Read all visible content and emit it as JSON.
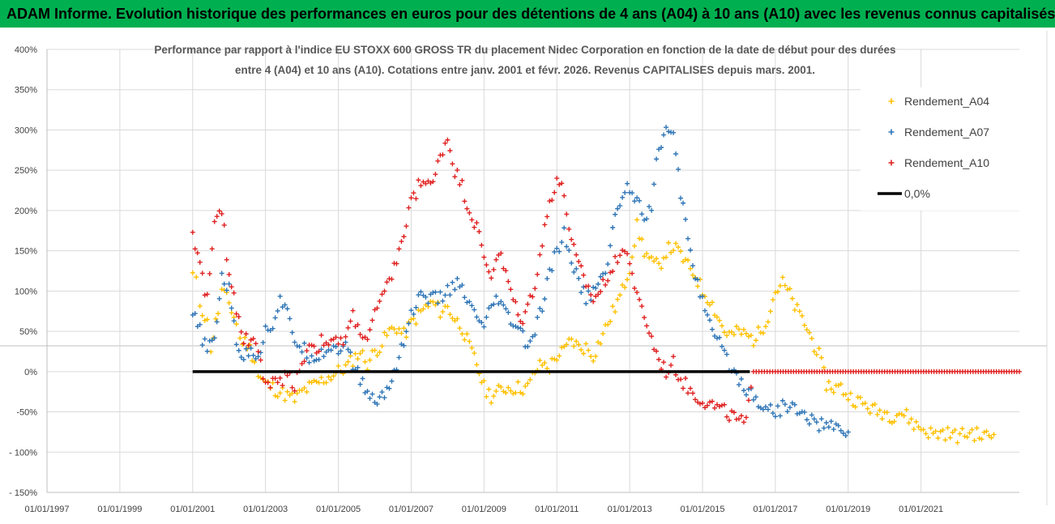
{
  "banner": {
    "text": "ADAM Informe. Evolution historique des performances en euros pour des détentions de 4 ans (A04) à 10 ans (A10) avec les revenus connus capitalisés",
    "background": "#00b050"
  },
  "chart_data": {
    "type": "scatter",
    "title_line1": "Performance par rapport à l'indice EU STOXX 600 GROSS TR  du placement Nidec Corporation en fonction de la date de début pour des durées",
    "title_line2": "entre 4 (A04) et 10 ans (A10). Cotations entre janv. 2001 et févr. 2026. Revenus CAPITALISES depuis mars. 2001.",
    "xlabel": "",
    "ylabel": "",
    "xlim": [
      1997,
      2023.7
    ],
    "ylim": [
      -150,
      400
    ],
    "y_ticks": [
      400,
      350,
      300,
      250,
      200,
      150,
      100,
      50,
      0,
      -50,
      -100,
      -150
    ],
    "y_tick_labels": [
      "400%",
      "350%",
      "300%",
      "250%",
      "200%",
      "150%",
      "100%",
      "50%",
      "0%",
      "-50%",
      "- 100%",
      "- 150%"
    ],
    "x_ticks": [
      1997,
      1999,
      2001,
      2003,
      2005,
      2007,
      2009,
      2011,
      2013,
      2015,
      2017,
      2019,
      2021
    ],
    "x_tick_labels": [
      "01/01/1997",
      "01/01/1999",
      "01/01/2001",
      "01/01/2003",
      "01/01/2005",
      "01/01/2007",
      "01/01/2009",
      "01/01/2011",
      "01/01/2013",
      "01/01/2015",
      "01/01/2017",
      "01/01/2019",
      "01/01/2021"
    ],
    "legend_position": "top-right",
    "series": [
      {
        "name": "Rendement_A04",
        "color": "#ffc000",
        "marker": "+",
        "points": [
          [
            2001.0,
            120
          ],
          [
            2001.1,
            110
          ],
          [
            2001.2,
            85
          ],
          [
            2001.4,
            60
          ],
          [
            2001.5,
            30
          ],
          [
            2001.7,
            75
          ],
          [
            2001.8,
            100
          ],
          [
            2002.0,
            85
          ],
          [
            2002.2,
            60
          ],
          [
            2002.3,
            40
          ],
          [
            2002.5,
            35
          ],
          [
            2002.7,
            15
          ],
          [
            2002.8,
            -5
          ],
          [
            2003.0,
            -15
          ],
          [
            2003.2,
            -20
          ],
          [
            2003.4,
            -25
          ],
          [
            2003.6,
            -30
          ],
          [
            2003.8,
            -35
          ],
          [
            2004.0,
            -25
          ],
          [
            2004.2,
            -20
          ],
          [
            2004.4,
            -15
          ],
          [
            2004.6,
            -10
          ],
          [
            2004.8,
            -5
          ],
          [
            2005.0,
            0
          ],
          [
            2005.2,
            5
          ],
          [
            2005.4,
            15
          ],
          [
            2005.6,
            25
          ],
          [
            2005.8,
            10
          ],
          [
            2006.0,
            25
          ],
          [
            2006.2,
            35
          ],
          [
            2006.4,
            50
          ],
          [
            2006.6,
            55
          ],
          [
            2006.8,
            45
          ],
          [
            2007.0,
            60
          ],
          [
            2007.2,
            70
          ],
          [
            2007.4,
            80
          ],
          [
            2007.6,
            85
          ],
          [
            2007.8,
            75
          ],
          [
            2008.0,
            80
          ],
          [
            2008.2,
            65
          ],
          [
            2008.4,
            55
          ],
          [
            2008.6,
            30
          ],
          [
            2008.8,
            10
          ],
          [
            2009.0,
            -20
          ],
          [
            2009.2,
            -30
          ],
          [
            2009.4,
            -25
          ],
          [
            2009.6,
            -20
          ],
          [
            2009.8,
            -20
          ],
          [
            2010.0,
            -20
          ],
          [
            2010.2,
            -20
          ],
          [
            2010.4,
            0
          ],
          [
            2010.6,
            10
          ],
          [
            2010.8,
            5
          ],
          [
            2011.0,
            20
          ],
          [
            2011.2,
            25
          ],
          [
            2011.4,
            40
          ],
          [
            2011.6,
            30
          ],
          [
            2011.8,
            30
          ],
          [
            2012.0,
            20
          ],
          [
            2012.2,
            40
          ],
          [
            2012.4,
            60
          ],
          [
            2012.6,
            80
          ],
          [
            2012.8,
            100
          ],
          [
            2013.0,
            130
          ],
          [
            2013.2,
            180
          ],
          [
            2013.4,
            150
          ],
          [
            2013.6,
            135
          ],
          [
            2013.8,
            130
          ],
          [
            2014.0,
            150
          ],
          [
            2014.2,
            155
          ],
          [
            2014.4,
            145
          ],
          [
            2014.6,
            130
          ],
          [
            2014.8,
            120
          ],
          [
            2015.0,
            100
          ],
          [
            2015.2,
            90
          ],
          [
            2015.4,
            70
          ],
          [
            2015.6,
            50
          ],
          [
            2015.8,
            45
          ],
          [
            2016.0,
            50
          ],
          [
            2016.2,
            45
          ],
          [
            2016.4,
            40
          ],
          [
            2016.6,
            50
          ],
          [
            2016.8,
            70
          ],
          [
            2017.0,
            100
          ],
          [
            2017.2,
            110
          ],
          [
            2017.4,
            95
          ],
          [
            2017.6,
            75
          ],
          [
            2017.8,
            60
          ],
          [
            2018.0,
            40
          ],
          [
            2018.2,
            20
          ],
          [
            2018.4,
            -15
          ],
          [
            2018.6,
            -20
          ],
          [
            2018.8,
            -20
          ],
          [
            2019.0,
            -30
          ],
          [
            2019.2,
            -35
          ],
          [
            2019.4,
            -40
          ],
          [
            2019.6,
            -45
          ],
          [
            2019.8,
            -50
          ],
          [
            2020.0,
            -50
          ],
          [
            2020.2,
            -55
          ],
          [
            2020.4,
            -50
          ],
          [
            2020.6,
            -55
          ],
          [
            2020.8,
            -65
          ],
          [
            2021.0,
            -70
          ],
          [
            2021.2,
            -75
          ],
          [
            2021.4,
            -78
          ],
          [
            2021.6,
            -75
          ],
          [
            2021.8,
            -78
          ],
          [
            2022.0,
            -80
          ],
          [
            2022.2,
            -78
          ],
          [
            2022.4,
            -75
          ],
          [
            2022.6,
            -80
          ],
          [
            2022.8,
            -80
          ],
          [
            2023.0,
            -78
          ]
        ]
      },
      {
        "name": "Rendement_A07",
        "color": "#2e75b6",
        "marker": "+",
        "points": [
          [
            2001.0,
            70
          ],
          [
            2001.2,
            50
          ],
          [
            2001.4,
            25
          ],
          [
            2001.6,
            40
          ],
          [
            2001.8,
            120
          ],
          [
            2002.0,
            100
          ],
          [
            2002.2,
            40
          ],
          [
            2002.4,
            15
          ],
          [
            2002.6,
            30
          ],
          [
            2002.8,
            20
          ],
          [
            2003.0,
            50
          ],
          [
            2003.2,
            60
          ],
          [
            2003.4,
            90
          ],
          [
            2003.6,
            70
          ],
          [
            2003.8,
            40
          ],
          [
            2004.0,
            30
          ],
          [
            2004.2,
            20
          ],
          [
            2004.4,
            20
          ],
          [
            2004.6,
            25
          ],
          [
            2004.8,
            30
          ],
          [
            2005.0,
            30
          ],
          [
            2005.2,
            30
          ],
          [
            2005.4,
            10
          ],
          [
            2005.6,
            -10
          ],
          [
            2005.8,
            -25
          ],
          [
            2006.0,
            -40
          ],
          [
            2006.2,
            -30
          ],
          [
            2006.4,
            -20
          ],
          [
            2006.6,
            10
          ],
          [
            2006.8,
            40
          ],
          [
            2007.0,
            70
          ],
          [
            2007.2,
            90
          ],
          [
            2007.4,
            95
          ],
          [
            2007.6,
            90
          ],
          [
            2007.8,
            90
          ],
          [
            2008.0,
            100
          ],
          [
            2008.2,
            110
          ],
          [
            2008.4,
            100
          ],
          [
            2008.6,
            80
          ],
          [
            2008.8,
            70
          ],
          [
            2009.0,
            50
          ],
          [
            2009.2,
            80
          ],
          [
            2009.4,
            90
          ],
          [
            2009.6,
            70
          ],
          [
            2009.8,
            60
          ],
          [
            2010.0,
            50
          ],
          [
            2010.2,
            30
          ],
          [
            2010.4,
            50
          ],
          [
            2010.6,
            80
          ],
          [
            2010.8,
            120
          ],
          [
            2011.0,
            150
          ],
          [
            2011.2,
            170
          ],
          [
            2011.4,
            140
          ],
          [
            2011.6,
            110
          ],
          [
            2011.8,
            90
          ],
          [
            2012.0,
            100
          ],
          [
            2012.2,
            110
          ],
          [
            2012.4,
            140
          ],
          [
            2012.6,
            190
          ],
          [
            2012.8,
            220
          ],
          [
            2013.0,
            230
          ],
          [
            2013.2,
            215
          ],
          [
            2013.4,
            195
          ],
          [
            2013.6,
            205
          ],
          [
            2013.8,
            280
          ],
          [
            2014.0,
            300
          ],
          [
            2014.2,
            290
          ],
          [
            2014.4,
            220
          ],
          [
            2014.6,
            170
          ],
          [
            2014.8,
            120
          ],
          [
            2015.0,
            90
          ],
          [
            2015.2,
            55
          ],
          [
            2015.4,
            40
          ],
          [
            2015.6,
            20
          ],
          [
            2015.8,
            5
          ],
          [
            2016.0,
            -10
          ],
          [
            2016.2,
            -20
          ],
          [
            2016.4,
            -30
          ],
          [
            2016.6,
            -40
          ],
          [
            2016.8,
            -45
          ],
          [
            2017.0,
            -50
          ],
          [
            2017.2,
            -45
          ],
          [
            2017.4,
            -40
          ],
          [
            2017.6,
            -50
          ],
          [
            2017.8,
            -55
          ],
          [
            2018.0,
            -60
          ],
          [
            2018.2,
            -65
          ],
          [
            2018.4,
            -68
          ],
          [
            2018.6,
            -70
          ],
          [
            2018.8,
            -72
          ],
          [
            2019.0,
            -75
          ]
        ]
      },
      {
        "name": "Rendement_A10",
        "color": "#e02020",
        "marker": "+",
        "points": [
          [
            2001.0,
            175
          ],
          [
            2001.2,
            130
          ],
          [
            2001.4,
            90
          ],
          [
            2001.6,
            180
          ],
          [
            2001.8,
            200
          ],
          [
            2002.0,
            120
          ],
          [
            2002.2,
            80
          ],
          [
            2002.4,
            40
          ],
          [
            2002.6,
            40
          ],
          [
            2002.8,
            30
          ],
          [
            2003.0,
            -20
          ],
          [
            2003.2,
            -15
          ],
          [
            2003.4,
            -10
          ],
          [
            2003.6,
            -5
          ],
          [
            2003.8,
            -15
          ],
          [
            2004.0,
            10
          ],
          [
            2004.2,
            35
          ],
          [
            2004.4,
            30
          ],
          [
            2004.6,
            40
          ],
          [
            2004.8,
            35
          ],
          [
            2005.0,
            35
          ],
          [
            2005.2,
            40
          ],
          [
            2005.4,
            70
          ],
          [
            2005.6,
            50
          ],
          [
            2005.8,
            40
          ],
          [
            2006.0,
            70
          ],
          [
            2006.2,
            90
          ],
          [
            2006.4,
            110
          ],
          [
            2006.6,
            140
          ],
          [
            2006.8,
            170
          ],
          [
            2007.0,
            210
          ],
          [
            2007.2,
            230
          ],
          [
            2007.4,
            240
          ],
          [
            2007.6,
            230
          ],
          [
            2007.8,
            270
          ],
          [
            2008.0,
            290
          ],
          [
            2008.2,
            250
          ],
          [
            2008.4,
            230
          ],
          [
            2008.6,
            200
          ],
          [
            2008.8,
            180
          ],
          [
            2009.0,
            140
          ],
          [
            2009.2,
            120
          ],
          [
            2009.4,
            150
          ],
          [
            2009.6,
            120
          ],
          [
            2009.8,
            90
          ],
          [
            2010.0,
            60
          ],
          [
            2010.2,
            80
          ],
          [
            2010.4,
            110
          ],
          [
            2010.6,
            160
          ],
          [
            2010.8,
            210
          ],
          [
            2011.0,
            240
          ],
          [
            2011.2,
            220
          ],
          [
            2011.4,
            160
          ],
          [
            2011.6,
            130
          ],
          [
            2011.8,
            110
          ],
          [
            2012.0,
            90
          ],
          [
            2012.2,
            100
          ],
          [
            2012.4,
            120
          ],
          [
            2012.6,
            140
          ],
          [
            2012.8,
            150
          ],
          [
            2013.0,
            140
          ],
          [
            2013.2,
            90
          ],
          [
            2013.4,
            70
          ],
          [
            2013.6,
            40
          ],
          [
            2013.8,
            15
          ],
          [
            2014.0,
            0
          ],
          [
            2014.2,
            10
          ],
          [
            2014.4,
            -10
          ],
          [
            2014.6,
            -20
          ],
          [
            2014.8,
            -30
          ],
          [
            2015.0,
            -35
          ],
          [
            2015.2,
            -40
          ],
          [
            2015.4,
            -45
          ],
          [
            2015.6,
            -50
          ],
          [
            2015.8,
            -55
          ],
          [
            2016.0,
            -62
          ],
          [
            2016.2,
            -65
          ],
          [
            2016.4,
            0
          ],
          [
            2017.0,
            0
          ],
          [
            2018.0,
            0
          ],
          [
            2019.0,
            0
          ],
          [
            2020.0,
            0
          ],
          [
            2021.0,
            0
          ],
          [
            2022.0,
            0
          ],
          [
            2023.0,
            0
          ],
          [
            2023.7,
            0
          ]
        ]
      },
      {
        "name": "0,0%",
        "color": "#000000",
        "marker": "line",
        "points": [
          [
            2001.0,
            0
          ],
          [
            2016.3,
            0
          ]
        ]
      }
    ]
  }
}
